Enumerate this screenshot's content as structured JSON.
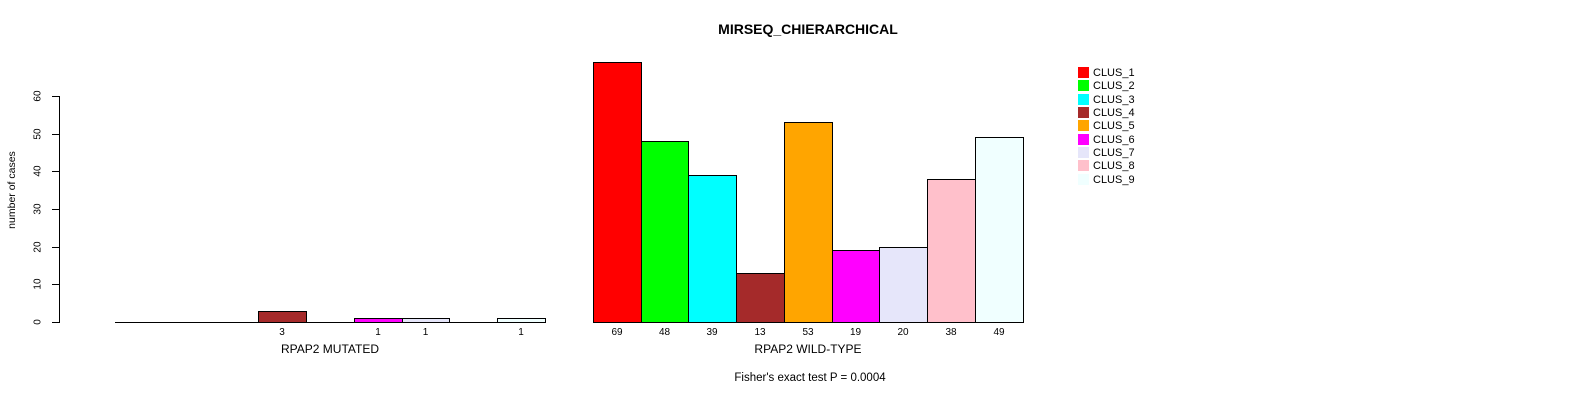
{
  "chart_data": {
    "type": "bar",
    "title": "MIRSEQ_CHIERARCHICAL",
    "ylabel": "number of cases",
    "xlabel": "",
    "ylim": [
      0,
      60
    ],
    "yticks": [
      0,
      10,
      20,
      30,
      40,
      50,
      60
    ],
    "grid": false,
    "legend_position": "right",
    "bar_border_color": "#000000",
    "series_names": [
      "CLUS_1",
      "CLUS_2",
      "CLUS_3",
      "CLUS_4",
      "CLUS_5",
      "CLUS_6",
      "CLUS_7",
      "CLUS_8",
      "CLUS_9"
    ],
    "series_colors": [
      "#ff0000",
      "#00ff00",
      "#00ffff",
      "#a52a2a",
      "#ffa500",
      "#ff00ff",
      "#e6e6fa",
      "#ffc0cb",
      "#f0ffff"
    ],
    "groups": [
      {
        "label": "RPAP2 MUTATED",
        "values": [
          0,
          0,
          0,
          3,
          0,
          1,
          1,
          0,
          1
        ]
      },
      {
        "label": "RPAP2 WILD-TYPE",
        "values": [
          69,
          48,
          39,
          13,
          53,
          19,
          20,
          38,
          49
        ]
      }
    ],
    "footnote": "Fisher's exact test P = 0.0004"
  }
}
